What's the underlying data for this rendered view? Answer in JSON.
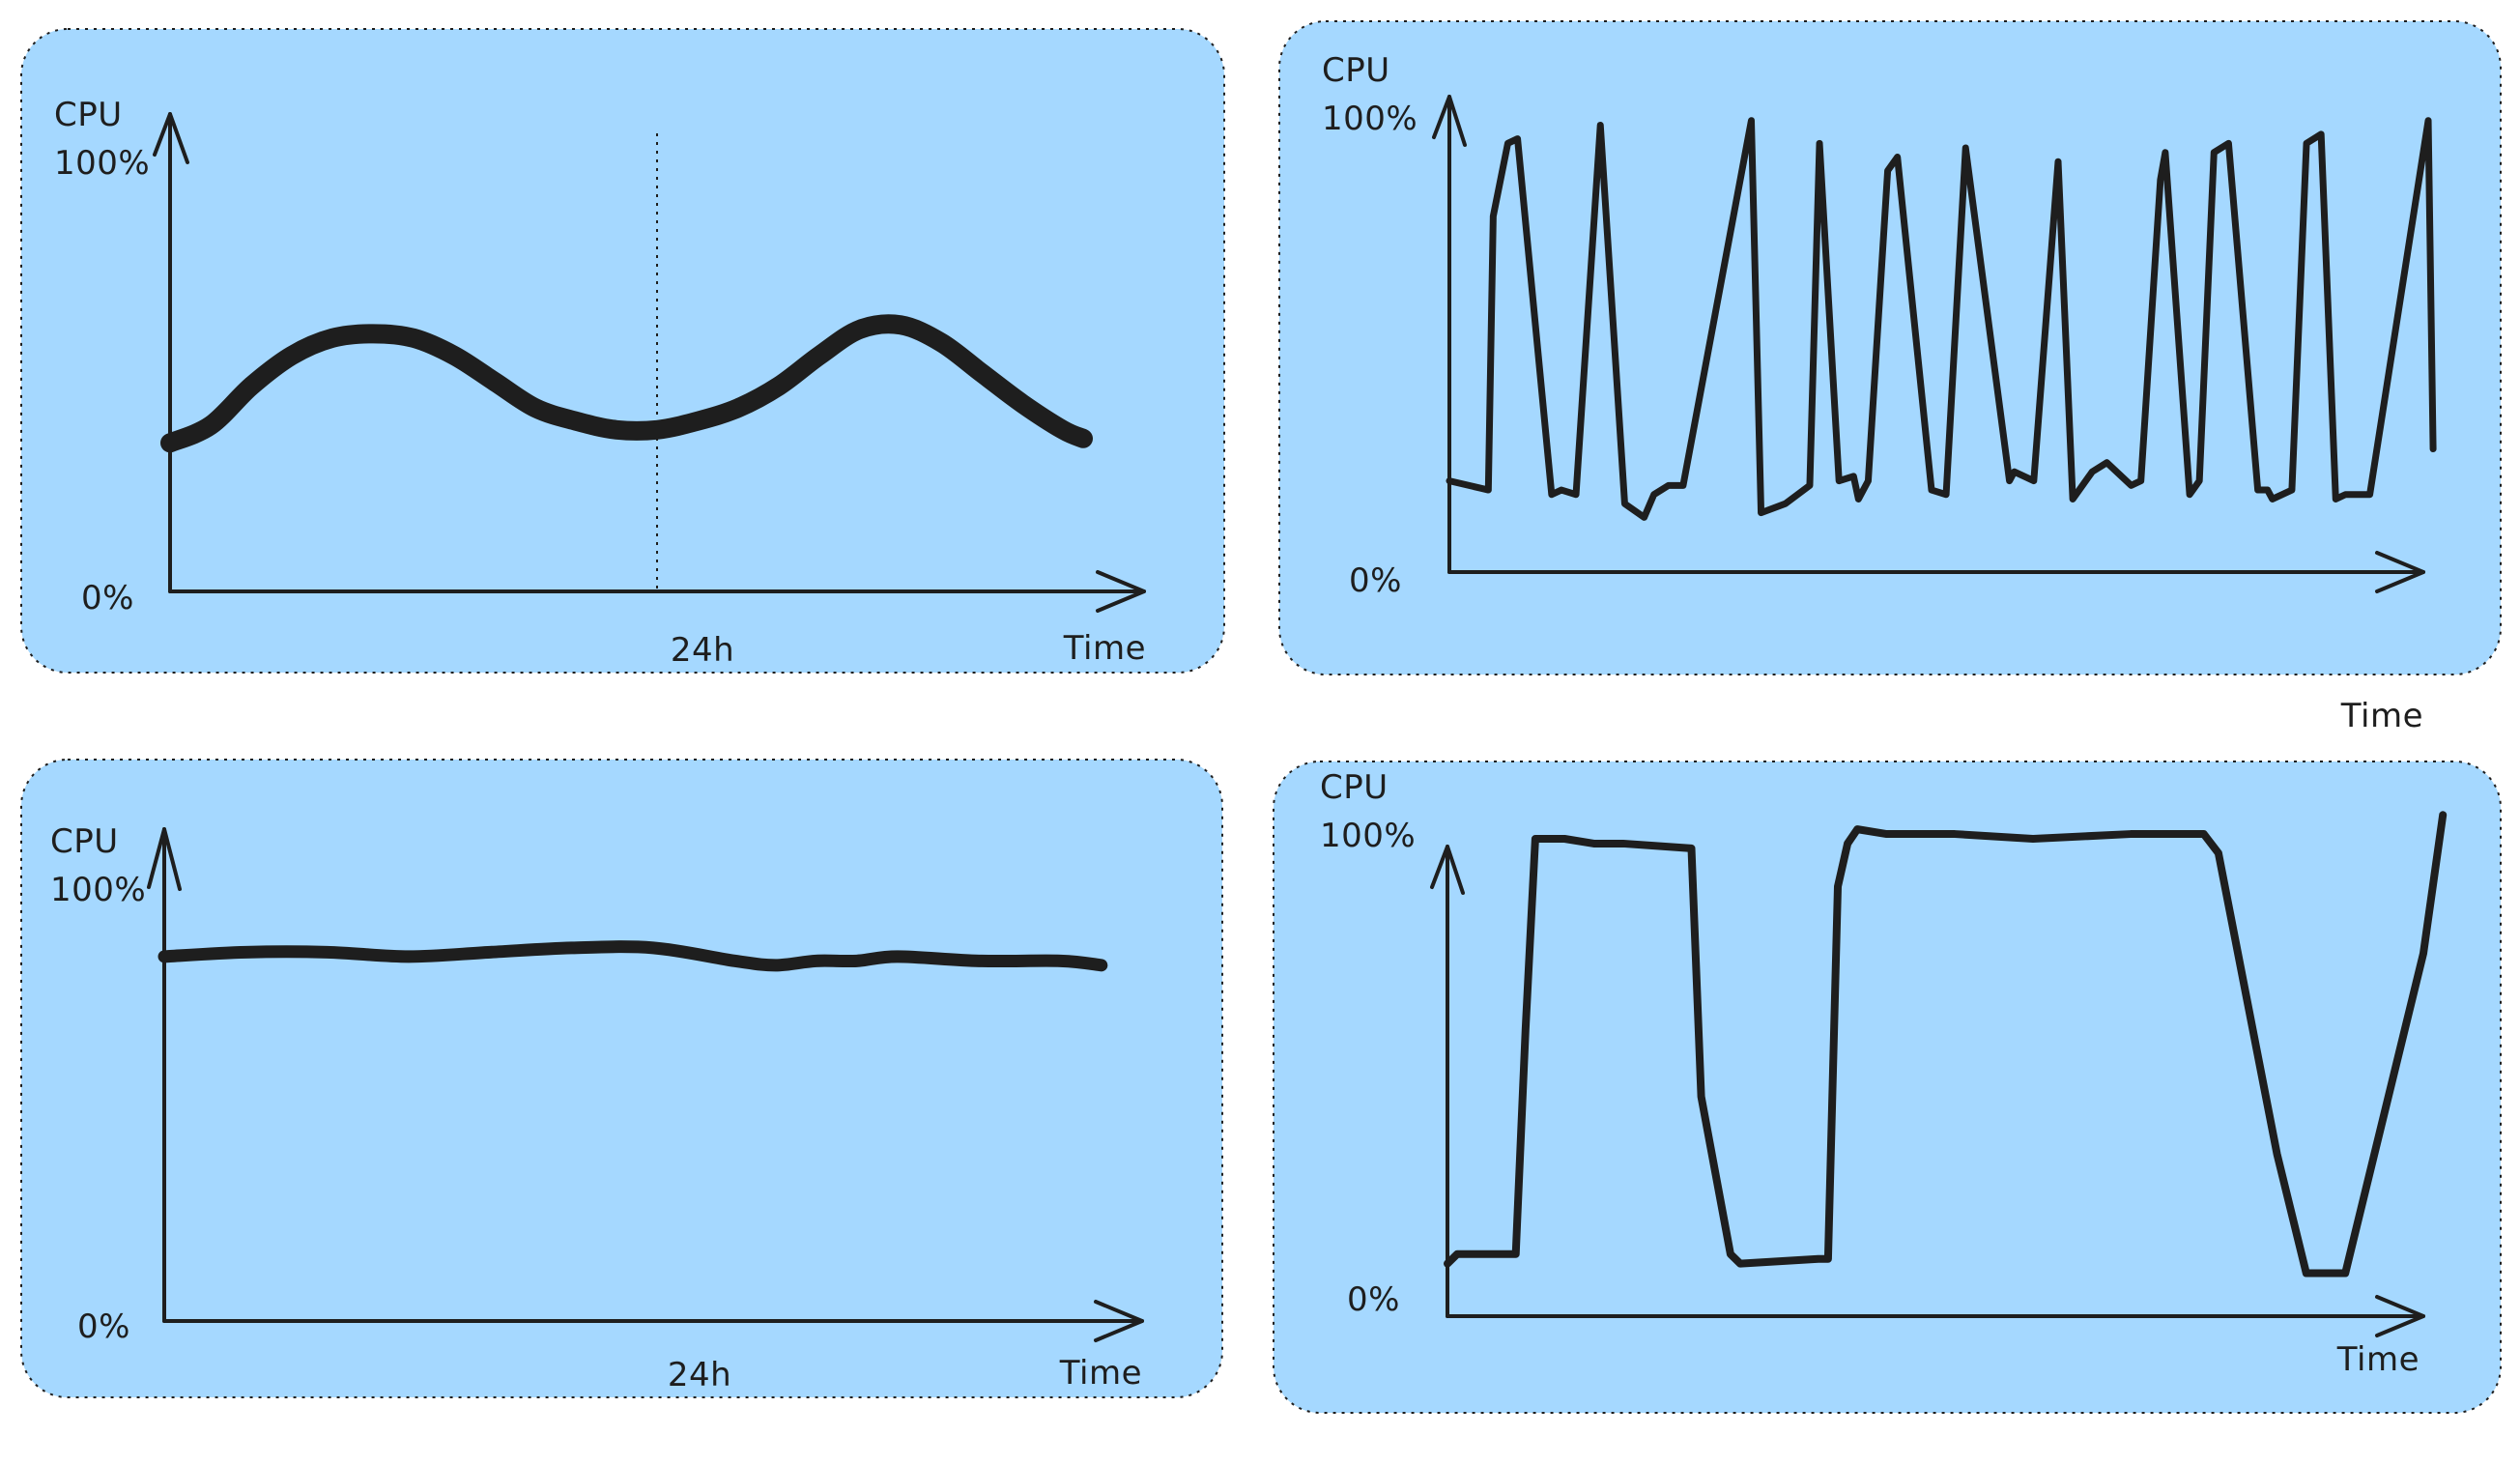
{
  "colors": {
    "panel_fill": "#a5d8ff",
    "panel_border": "#1e1e1e",
    "ink": "#1e1e1e",
    "background": "#ffffff"
  },
  "chart_data": [
    {
      "type": "line",
      "ylabel": "CPU",
      "y_tick_labels": [
        "100%",
        "0%"
      ],
      "ylim": [
        0,
        100
      ],
      "xlabel": "Time",
      "x_tick_labels": [
        "24h"
      ],
      "xlim": [
        0,
        48
      ],
      "reference_line_x": 24,
      "grid": false,
      "series": [
        {
          "x": [
            0,
            2,
            4,
            6,
            8,
            10,
            12,
            14,
            16,
            18,
            20,
            22,
            24,
            26,
            28,
            30,
            32,
            34,
            36,
            38,
            40,
            42,
            44,
            45
          ],
          "values": [
            34,
            38,
            47,
            54,
            58,
            59,
            58,
            54,
            48,
            42,
            39,
            37,
            37,
            39,
            42,
            47,
            54,
            60,
            61,
            57,
            50,
            43,
            37,
            35
          ]
        }
      ]
    },
    {
      "type": "line",
      "ylabel": "CPU",
      "y_tick_labels": [
        "100%",
        "0%"
      ],
      "ylim": [
        0,
        100
      ],
      "xlabel": "Time",
      "xlim": [
        0,
        100
      ],
      "grid": false,
      "series": [
        {
          "x": [
            0,
            4,
            4.5,
            6,
            7,
            10.5,
            11.5,
            13,
            15.5,
            18,
            20,
            21,
            22.5,
            24,
            31,
            32,
            34.5,
            37,
            38,
            40,
            41.5,
            42,
            43,
            45,
            46,
            49.5,
            51,
            53,
            57.5,
            58,
            60,
            62.5,
            64,
            66,
            67.5,
            70,
            71,
            73,
            73.5,
            76,
            77,
            78.5,
            80,
            83,
            84,
            84.5,
            86.5,
            88,
            89.5,
            91,
            92,
            94.5,
            100.5,
            101
          ],
          "values": [
            20,
            18,
            78,
            94,
            95,
            17,
            18,
            17,
            98,
            15,
            12,
            17,
            19,
            19,
            99,
            13,
            15,
            19,
            94,
            20,
            21,
            16,
            20,
            88,
            91,
            18,
            17,
            93,
            20,
            22,
            20,
            90,
            16,
            22,
            24,
            19,
            20,
            86,
            92,
            17,
            20,
            92,
            94,
            18,
            18,
            16,
            18,
            94,
            96,
            16,
            17,
            17,
            99,
            27
          ]
        }
      ]
    },
    {
      "type": "line",
      "ylabel": "CPU",
      "y_tick_labels": [
        "100%",
        "0%"
      ],
      "ylim": [
        0,
        100
      ],
      "xlabel": "Time",
      "x_tick_labels": [
        "24h"
      ],
      "xlim": [
        0,
        48
      ],
      "grid": false,
      "series": [
        {
          "x": [
            0,
            4,
            8,
            12,
            16,
            20,
            24,
            28,
            30,
            32,
            34,
            36,
            40,
            44,
            46
          ],
          "values": [
            84,
            85,
            85,
            84,
            85,
            86,
            86,
            83,
            82,
            83,
            83,
            84,
            83,
            83,
            82
          ]
        }
      ]
    },
    {
      "type": "line",
      "ylabel": "CPU",
      "y_tick_labels": [
        "100%",
        "0%"
      ],
      "ylim": [
        0,
        100
      ],
      "xlabel": "Time",
      "xlim": [
        0,
        100
      ],
      "grid": false,
      "series": [
        {
          "x": [
            0,
            1,
            6,
            7,
            8,
            9,
            12,
            15,
            18,
            25,
            26,
            29,
            30,
            38,
            39,
            40,
            41,
            42,
            45,
            52,
            60,
            70,
            77.5,
            79,
            85,
            88,
            92,
            100,
            102
          ],
          "values": [
            11,
            13,
            13,
            13,
            60,
            100,
            100,
            99,
            99,
            98,
            46,
            13,
            11,
            12,
            12,
            90,
            99,
            102,
            101,
            101,
            100,
            101,
            101,
            97,
            34,
            9,
            9,
            76,
            105
          ]
        }
      ]
    }
  ]
}
